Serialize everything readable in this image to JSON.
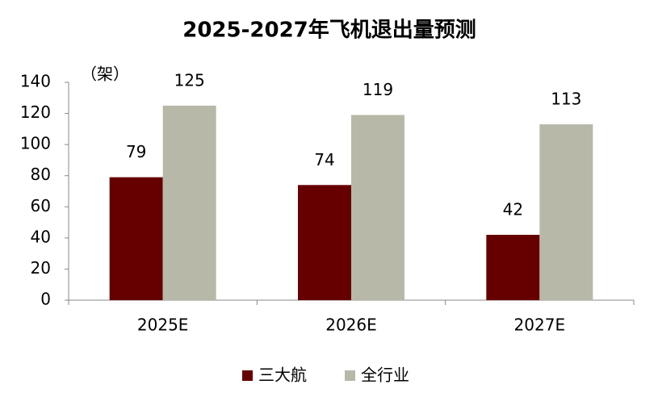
{
  "chart_data": {
    "type": "bar",
    "title": "2025-2027年飞机退出量预测",
    "ylabel": "（架）",
    "categories": [
      "2025E",
      "2026E",
      "2027E"
    ],
    "series": [
      {
        "name": "三大航",
        "color": "#660000",
        "values": [
          79,
          74,
          42
        ]
      },
      {
        "name": "全行业",
        "color": "#b8b8a8",
        "values": [
          125,
          119,
          113
        ]
      }
    ],
    "ylim": [
      0,
      140
    ],
    "yticks": [
      0,
      20,
      40,
      60,
      80,
      100,
      120,
      140
    ],
    "legend": "bottom"
  }
}
